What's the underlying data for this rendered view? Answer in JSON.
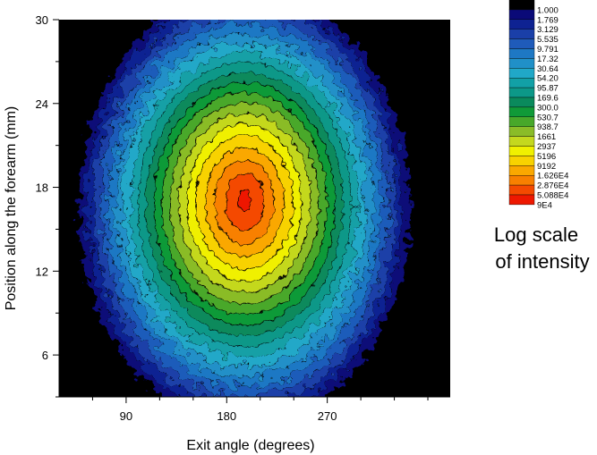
{
  "chart_data": {
    "type": "heatmap",
    "subtype": "contour",
    "title": "",
    "xlabel": "Exit angle (degrees)",
    "ylabel": "Position along the forearm (mm)",
    "xlim": [
      30,
      380
    ],
    "ylim": [
      3,
      30
    ],
    "x_ticks": [
      90,
      180,
      270
    ],
    "y_ticks": [
      6,
      12,
      18,
      24,
      30
    ],
    "grid": false,
    "background_color": "#000000",
    "peak": {
      "x": 196,
      "y": 17,
      "intensity": 90000
    },
    "colorbar": {
      "scale": "log",
      "placement": "right",
      "title_lines": [
        "Log scale",
        "of intensity"
      ],
      "levels": [
        "1.000",
        "1.769",
        "3.129",
        "5.535",
        "9.791",
        "17.32",
        "30.64",
        "54.20",
        "95.87",
        "169.6",
        "300.0",
        "530.7",
        "938.7",
        "1661",
        "2937",
        "5196",
        "9192",
        "1.626E4",
        "2.876E4",
        "5.088E4",
        "9E4"
      ],
      "colors": [
        "#000000",
        "#0a0a78",
        "#0e2292",
        "#1a3fa8",
        "#1f5bba",
        "#1e78c4",
        "#2090c8",
        "#20a8c8",
        "#12a0a6",
        "#0c9888",
        "#0a8a5c",
        "#109a38",
        "#48a82a",
        "#8abc28",
        "#c4d81e",
        "#f0f000",
        "#f8d200",
        "#faa800",
        "#f88000",
        "#f44a00",
        "#ee1800"
      ]
    }
  }
}
